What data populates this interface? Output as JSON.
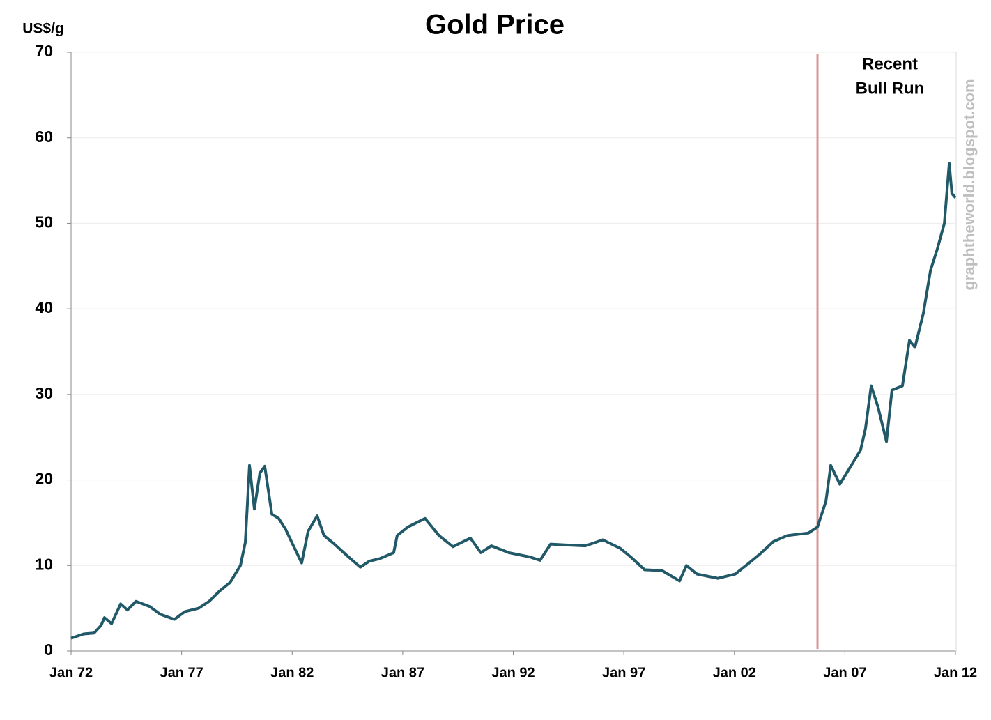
{
  "chart_data": {
    "type": "line",
    "title": "Gold Price",
    "y_label": "US$/g",
    "watermark": "graphtheworld.blogspot.com",
    "x": [
      1972.0,
      1972.57,
      1973.04,
      1973.36,
      1973.51,
      1973.83,
      1974.24,
      1974.55,
      1974.93,
      1975.25,
      1975.56,
      1976.03,
      1976.67,
      1977.14,
      1977.77,
      1978.24,
      1978.71,
      1979.19,
      1979.66,
      1979.88,
      1980.07,
      1980.29,
      1980.54,
      1980.76,
      1981.08,
      1981.39,
      1981.71,
      1982.02,
      1982.43,
      1982.72,
      1983.13,
      1983.44,
      1983.91,
      1984.55,
      1985.08,
      1985.49,
      1985.96,
      1986.59,
      1986.75,
      1987.23,
      1988.01,
      1988.64,
      1989.27,
      1990.06,
      1990.53,
      1991.01,
      1991.8,
      1992.74,
      1993.21,
      1993.69,
      1994.32,
      1995.26,
      1996.05,
      1996.84,
      1997.31,
      1997.94,
      1998.73,
      1999.52,
      1999.83,
      2000.31,
      2001.25,
      2002.04,
      2002.67,
      2003.14,
      2003.77,
      2004.4,
      2005.35,
      2005.76,
      2006.14,
      2006.36,
      2006.77,
      2007.24,
      2007.71,
      2007.93,
      2008.19,
      2008.5,
      2008.88,
      2009.13,
      2009.6,
      2009.92,
      2010.17,
      2010.55,
      2010.87,
      2011.18,
      2011.5,
      2011.72,
      2011.84,
      2012.0
    ],
    "series": [
      {
        "name": "Gold Price",
        "color": "#215968",
        "values": [
          1.5,
          2.0,
          2.1,
          3.0,
          3.9,
          3.2,
          5.5,
          4.8,
          5.8,
          5.5,
          5.2,
          4.3,
          3.7,
          4.6,
          5.0,
          5.8,
          7.0,
          8.0,
          10.0,
          12.7,
          21.7,
          16.6,
          20.8,
          21.6,
          16.0,
          15.5,
          14.2,
          12.5,
          10.3,
          14.0,
          15.8,
          13.5,
          12.5,
          11.0,
          9.8,
          10.5,
          10.8,
          11.5,
          13.5,
          14.5,
          15.5,
          13.5,
          12.2,
          13.2,
          11.5,
          12.3,
          11.5,
          11.0,
          10.6,
          12.5,
          12.4,
          12.3,
          13.0,
          12.0,
          11.0,
          9.5,
          9.4,
          8.2,
          10.0,
          9.0,
          8.5,
          9.0,
          10.3,
          11.3,
          12.8,
          13.5,
          13.8,
          14.5,
          17.5,
          21.7,
          19.5,
          21.5,
          23.5,
          26.0,
          31.0,
          28.5,
          24.5,
          30.5,
          31.0,
          36.3,
          35.5,
          39.5,
          44.5,
          47.0,
          50.0,
          57.0,
          53.5,
          53.0
        ]
      }
    ],
    "xlim": [
      1972,
      2012
    ],
    "xticks": [
      {
        "value": 1972,
        "label": "Jan 72"
      },
      {
        "value": 1977,
        "label": "Jan 77"
      },
      {
        "value": 1982,
        "label": "Jan 82"
      },
      {
        "value": 1987,
        "label": "Jan 87"
      },
      {
        "value": 1992,
        "label": "Jan 92"
      },
      {
        "value": 1997,
        "label": "Jan 97"
      },
      {
        "value": 2002,
        "label": "Jan 02"
      },
      {
        "value": 2007,
        "label": "Jan 07"
      },
      {
        "value": 2012,
        "label": "Jan 12"
      }
    ],
    "ylim": [
      0,
      70
    ],
    "yticks": [
      0,
      10,
      20,
      30,
      40,
      50,
      60,
      70
    ],
    "grid": true,
    "marker": {
      "x": 2005.76,
      "color": "#d99694",
      "lines": [
        "Recent",
        "Bull Run"
      ]
    }
  }
}
